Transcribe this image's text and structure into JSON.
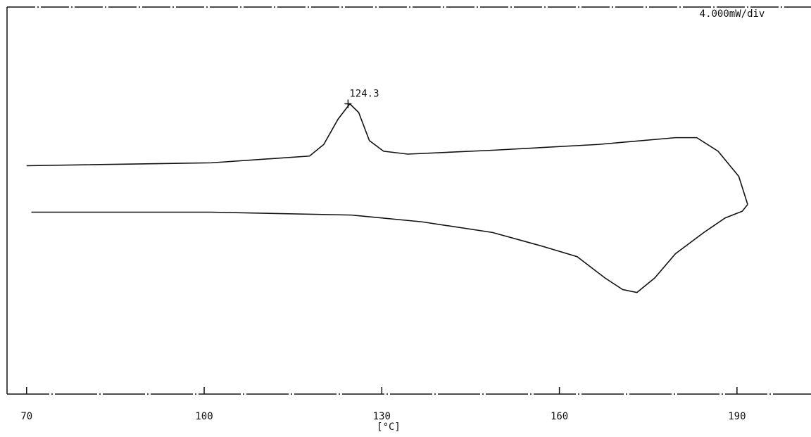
{
  "chart_data": {
    "type": "line",
    "x_label": "[°C]",
    "scale_label": "4.000mW/div",
    "xlim": [
      66.7,
      202.5
    ],
    "xticks": [
      70,
      100,
      130,
      160,
      190
    ],
    "ylim": [
      0,
      40
    ],
    "series": [
      {
        "color": "#111111",
        "x": [
          70.0,
          101.2,
          117.8,
          120.2,
          122.6,
          124.6,
          126.1,
          127.9,
          130.3,
          134.4,
          148.7,
          166.6,
          179.6,
          183.2,
          186.8,
          190.3,
          191.8
        ],
        "values": [
          23.6,
          23.9,
          24.6,
          25.8,
          28.4,
          30.0,
          29.1,
          26.2,
          25.1,
          24.8,
          25.2,
          25.8,
          26.5,
          26.5,
          25.1,
          22.5,
          19.6
        ]
      },
      {
        "color": "#111111",
        "x": [
          191.8,
          190.9,
          188.0,
          184.4,
          179.6,
          176.1,
          173.1,
          170.7,
          167.7,
          163.0,
          157.0,
          148.7,
          136.8,
          124.9,
          101.2,
          70.8
        ],
        "values": [
          19.6,
          18.9,
          18.2,
          16.7,
          14.5,
          12.0,
          10.5,
          10.8,
          12.0,
          14.2,
          15.3,
          16.7,
          17.8,
          18.5,
          18.8,
          18.8
        ]
      }
    ],
    "annotations": [
      {
        "label": "124.3",
        "x": 124.3,
        "y": 30.0
      }
    ]
  }
}
